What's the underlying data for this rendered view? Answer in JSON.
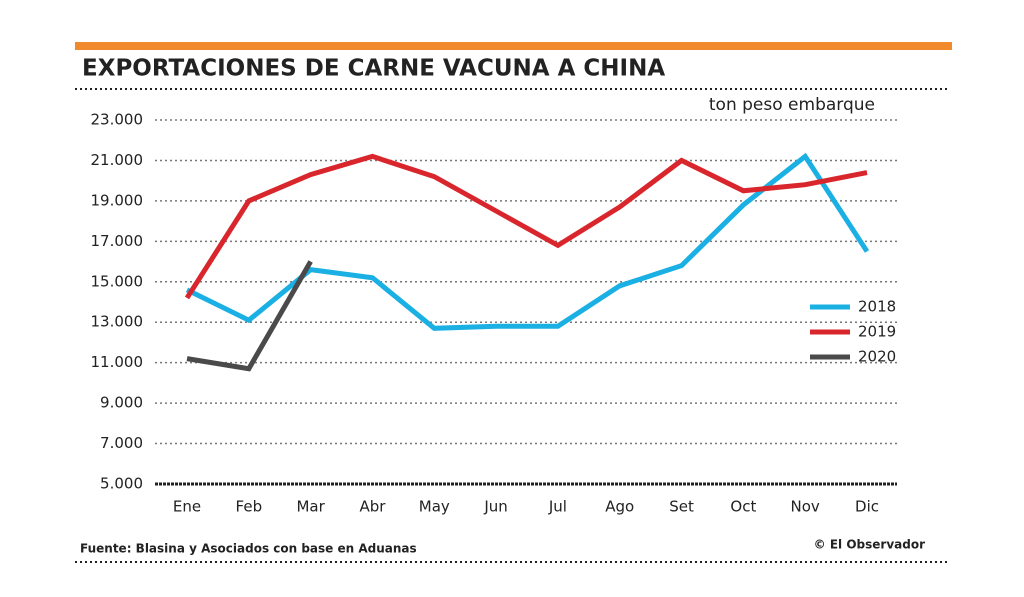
{
  "chart_data": {
    "type": "line",
    "title": "EXPORTACIONES DE CARNE VACUNA A CHINA",
    "unit_label": "ton peso embarque",
    "source": "Fuente: Blasina y Asociados con base en Aduanas",
    "credit": "© El Observador",
    "categories": [
      "Ene",
      "Feb",
      "Mar",
      "Abr",
      "May",
      "Jun",
      "Jul",
      "Ago",
      "Set",
      "Oct",
      "Nov",
      "Dic"
    ],
    "series": [
      {
        "name": "2018",
        "color": "#1ab0e3",
        "values": [
          14600,
          13100,
          15600,
          15200,
          12700,
          12800,
          12800,
          14800,
          15800,
          18800,
          21200,
          16500
        ]
      },
      {
        "name": "2019",
        "color": "#d9262c",
        "values": [
          14200,
          19000,
          20300,
          21200,
          20200,
          18500,
          16800,
          18700,
          21000,
          19500,
          19800,
          20400
        ]
      },
      {
        "name": "2020",
        "color": "#4a4a4a",
        "values": [
          11200,
          10700,
          16000,
          null,
          null,
          null,
          null,
          null,
          null,
          null,
          null,
          null
        ]
      }
    ],
    "ylim": [
      5000,
      23000
    ],
    "yticks": [
      {
        "value": 5000,
        "label": "5.000"
      },
      {
        "value": 7000,
        "label": "7.000"
      },
      {
        "value": 9000,
        "label": "9.000"
      },
      {
        "value": 11000,
        "label": "11.000"
      },
      {
        "value": 13000,
        "label": "13.000"
      },
      {
        "value": 15000,
        "label": "15.000"
      },
      {
        "value": 17000,
        "label": "17.000"
      },
      {
        "value": 19000,
        "label": "19.000"
      },
      {
        "value": 21000,
        "label": "21.000"
      },
      {
        "value": 23000,
        "label": "23.000"
      }
    ],
    "grid": true,
    "legend": "right"
  }
}
